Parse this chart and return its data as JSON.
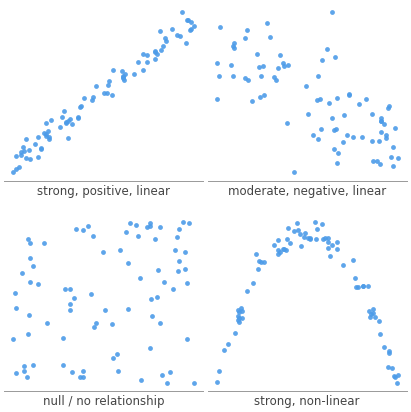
{
  "dot_color": "#4C9BE8",
  "dot_size": 12,
  "dot_alpha": 0.9,
  "background_color": "#ffffff",
  "labels": [
    "strong, positive, linear",
    "moderate, negative, linear",
    "null / no relationship",
    "strong, non-linear"
  ],
  "label_fontsize": 8.5,
  "seed": 42,
  "n_points": 80
}
